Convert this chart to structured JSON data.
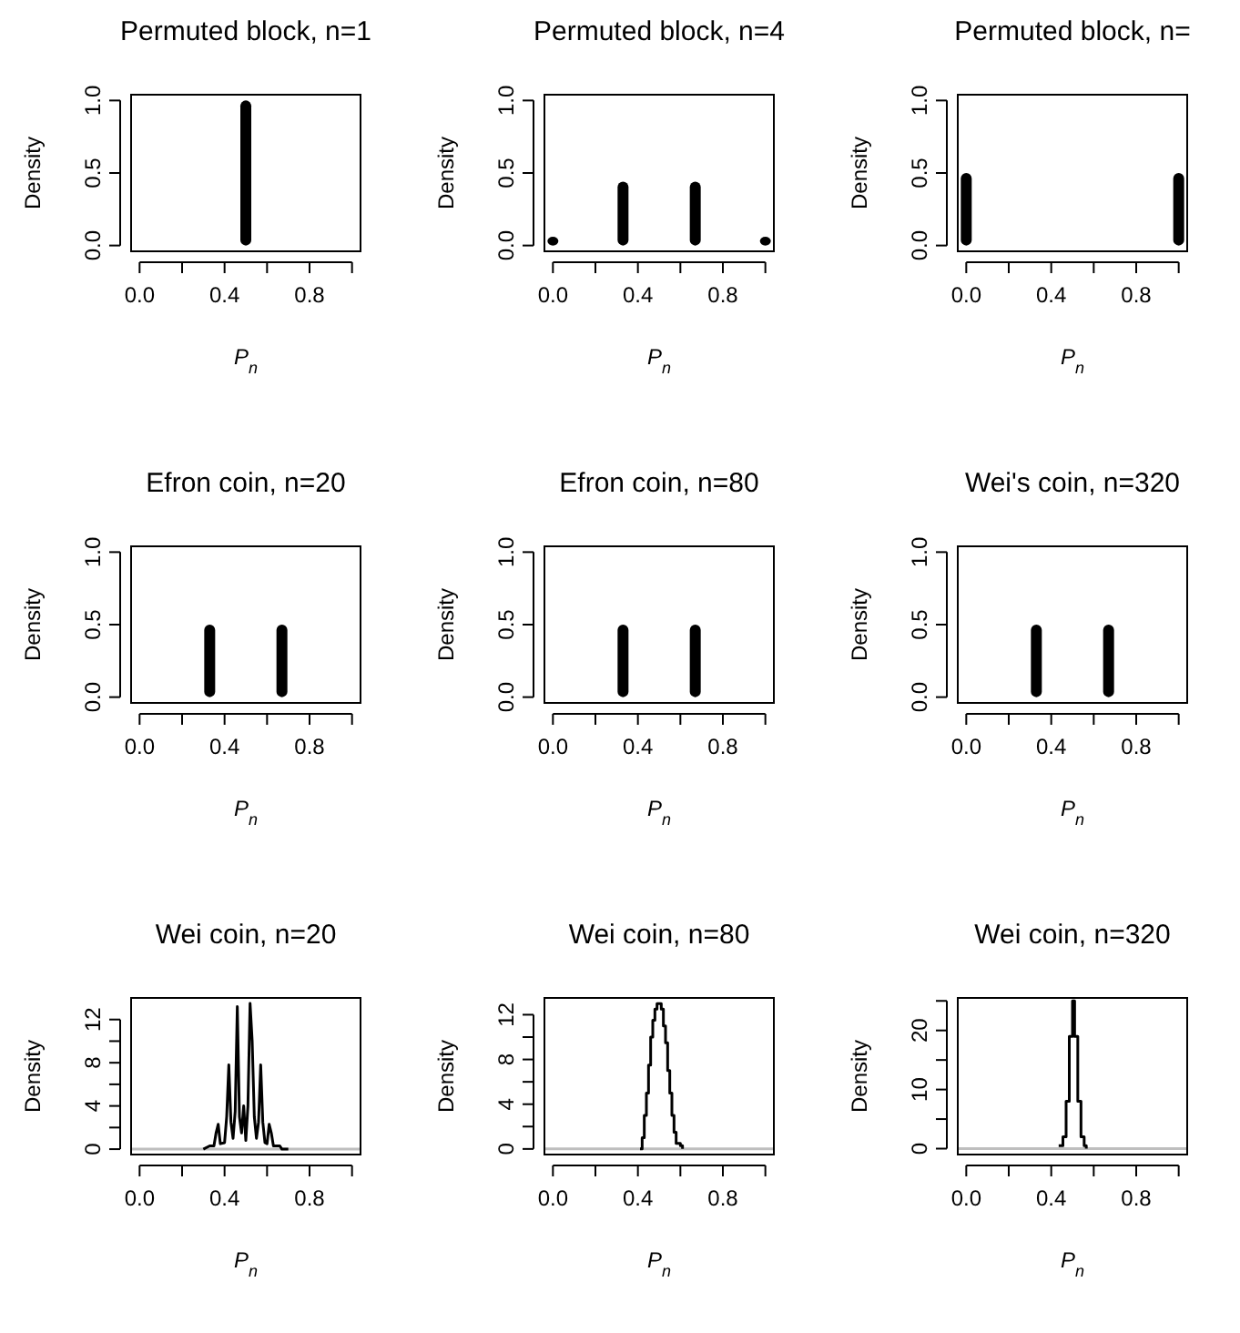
{
  "chart_data": [
    {
      "type": "bar",
      "title": "Permuted block, n=1",
      "xlabel": "P$_{n}$",
      "ylabel": "Density",
      "x": [
        0.5
      ],
      "series": [
        {
          "color": "#000000",
          "values": [
            1
          ]
        }
      ],
      "xlim": [
        -0.04,
        1.04
      ],
      "xticks": [
        {
          "value": 0,
          "label": "0.0"
        },
        {
          "value": 0.2,
          "label": null
        },
        {
          "value": 0.4,
          "label": "0.4"
        },
        {
          "value": 0.6,
          "label": null
        },
        {
          "value": 0.8,
          "label": "0.8"
        },
        {
          "value": 1,
          "label": null
        }
      ],
      "ylim": [
        -0.04,
        1.04
      ],
      "yticks": [
        {
          "value": 0,
          "label": "0.0"
        },
        {
          "value": 0.5,
          "label": "0.5"
        },
        {
          "value": 1,
          "label": "1.0"
        }
      ]
    },
    {
      "type": "bar",
      "title": "Permuted block, n=4",
      "xlabel": "P$_{n}$",
      "ylabel": "Density",
      "x": [
        0,
        0.33,
        0.67,
        1
      ],
      "series": [
        {
          "color": "#000000",
          "values": [
            0.06,
            0.44,
            0.44,
            0.06
          ]
        }
      ],
      "xlim": [
        -0.04,
        1.04
      ],
      "xticks": [
        {
          "value": 0,
          "label": "0.0"
        },
        {
          "value": 0.2,
          "label": null
        },
        {
          "value": 0.4,
          "label": "0.4"
        },
        {
          "value": 0.6,
          "label": null
        },
        {
          "value": 0.8,
          "label": "0.8"
        },
        {
          "value": 1,
          "label": null
        }
      ],
      "ylim": [
        -0.04,
        1.04
      ],
      "yticks": [
        {
          "value": 0,
          "label": "0.0"
        },
        {
          "value": 0.5,
          "label": "0.5"
        },
        {
          "value": 1,
          "label": "1.0"
        }
      ]
    },
    {
      "type": "bar",
      "title": "Permuted block, n=",
      "xlabel": "P$_{n}$",
      "ylabel": "Density",
      "x": [
        0,
        1
      ],
      "series": [
        {
          "color": "#000000",
          "values": [
            0.5,
            0.5
          ]
        }
      ],
      "xlim": [
        -0.04,
        1.04
      ],
      "xticks": [
        {
          "value": 0,
          "label": "0.0"
        },
        {
          "value": 0.2,
          "label": null
        },
        {
          "value": 0.4,
          "label": "0.4"
        },
        {
          "value": 0.6,
          "label": null
        },
        {
          "value": 0.8,
          "label": "0.8"
        },
        {
          "value": 1,
          "label": null
        }
      ],
      "ylim": [
        -0.04,
        1.04
      ],
      "yticks": [
        {
          "value": 0,
          "label": "0.0"
        },
        {
          "value": 0.5,
          "label": "0.5"
        },
        {
          "value": 1,
          "label": "1.0"
        }
      ]
    },
    {
      "type": "bar",
      "title": "Efron coin, n=20",
      "xlabel": "P$_{n}$",
      "ylabel": "Density",
      "x": [
        0.33,
        0.67
      ],
      "series": [
        {
          "color": "#000000",
          "values": [
            0.5,
            0.5
          ]
        }
      ],
      "xlim": [
        -0.04,
        1.04
      ],
      "xticks": [
        {
          "value": 0,
          "label": "0.0"
        },
        {
          "value": 0.2,
          "label": null
        },
        {
          "value": 0.4,
          "label": "0.4"
        },
        {
          "value": 0.6,
          "label": null
        },
        {
          "value": 0.8,
          "label": "0.8"
        },
        {
          "value": 1,
          "label": null
        }
      ],
      "ylim": [
        -0.04,
        1.04
      ],
      "yticks": [
        {
          "value": 0,
          "label": "0.0"
        },
        {
          "value": 0.5,
          "label": "0.5"
        },
        {
          "value": 1,
          "label": "1.0"
        }
      ]
    },
    {
      "type": "bar",
      "title": "Efron coin, n=80",
      "xlabel": "P$_{n}$",
      "ylabel": "Density",
      "x": [
        0.33,
        0.67
      ],
      "series": [
        {
          "color": "#000000",
          "values": [
            0.5,
            0.5
          ]
        }
      ],
      "xlim": [
        -0.04,
        1.04
      ],
      "xticks": [
        {
          "value": 0,
          "label": "0.0"
        },
        {
          "value": 0.2,
          "label": null
        },
        {
          "value": 0.4,
          "label": "0.4"
        },
        {
          "value": 0.6,
          "label": null
        },
        {
          "value": 0.8,
          "label": "0.8"
        },
        {
          "value": 1,
          "label": null
        }
      ],
      "ylim": [
        -0.04,
        1.04
      ],
      "yticks": [
        {
          "value": 0,
          "label": "0.0"
        },
        {
          "value": 0.5,
          "label": "0.5"
        },
        {
          "value": 1,
          "label": "1.0"
        }
      ]
    },
    {
      "type": "bar",
      "title": "Wei's coin, n=320",
      "xlabel": "P$_{n}$",
      "ylabel": "Density",
      "x": [
        0.33,
        0.67
      ],
      "series": [
        {
          "color": "#000000",
          "values": [
            0.5,
            0.5
          ]
        }
      ],
      "xlim": [
        -0.04,
        1.04
      ],
      "xticks": [
        {
          "value": 0,
          "label": "0.0"
        },
        {
          "value": 0.2,
          "label": null
        },
        {
          "value": 0.4,
          "label": "0.4"
        },
        {
          "value": 0.6,
          "label": null
        },
        {
          "value": 0.8,
          "label": "0.8"
        },
        {
          "value": 1,
          "label": null
        }
      ],
      "ylim": [
        -0.04,
        1.04
      ],
      "yticks": [
        {
          "value": 0,
          "label": "0.0"
        },
        {
          "value": 0.5,
          "label": "0.5"
        },
        {
          "value": 1,
          "label": "1.0"
        }
      ]
    },
    {
      "type": "line",
      "title": "Wei coin, n=20",
      "xlabel": "P$_{n}$",
      "ylabel": "Density",
      "x": [
        0.3,
        0.33,
        0.35,
        0.36,
        0.37,
        0.38,
        0.4,
        0.41,
        0.42,
        0.43,
        0.44,
        0.45,
        0.46,
        0.47,
        0.48,
        0.49,
        0.5,
        0.51,
        0.52,
        0.53,
        0.54,
        0.55,
        0.56,
        0.57,
        0.58,
        0.59,
        0.6,
        0.61,
        0.62,
        0.63,
        0.66,
        0.67,
        0.7
      ],
      "series": [
        {
          "color": "#000000",
          "values": [
            0,
            0.3,
            0.3,
            1.5,
            2.3,
            0.5,
            0.6,
            3,
            7.8,
            2.5,
            1,
            3.5,
            13.2,
            3,
            1.5,
            4,
            0.8,
            4,
            13.5,
            10,
            3,
            1,
            2.5,
            7.8,
            2.5,
            0.6,
            0.5,
            2.3,
            1.5,
            0.3,
            0.3,
            0,
            0
          ]
        }
      ],
      "ref_lines": [
        {
          "axis": "y",
          "value": 0,
          "color": "#bebebe"
        }
      ],
      "xlim": [
        -0.04,
        1.04
      ],
      "xticks": [
        {
          "value": 0,
          "label": "0.0"
        },
        {
          "value": 0.2,
          "label": null
        },
        {
          "value": 0.4,
          "label": "0.4"
        },
        {
          "value": 0.6,
          "label": null
        },
        {
          "value": 0.8,
          "label": "0.8"
        },
        {
          "value": 1,
          "label": null
        }
      ],
      "ylim": [
        -0.5,
        14
      ],
      "yticks": [
        0,
        {
          "value": 2,
          "label": null
        },
        4,
        {
          "value": 6,
          "label": null
        },
        8,
        {
          "value": 10,
          "label": null
        },
        12
      ]
    },
    {
      "type": "step",
      "title": "Wei coin, n=80",
      "xlabel": "P$_{n}$",
      "ylabel": "Density",
      "x": [
        0.41,
        0.42,
        0.43,
        0.44,
        0.45,
        0.46,
        0.47,
        0.48,
        0.49,
        0.5,
        0.51,
        0.52,
        0.53,
        0.54,
        0.55,
        0.56,
        0.57,
        0.58,
        0.6,
        0.61
      ],
      "series": [
        {
          "color": "#000000",
          "values": [
            0,
            1,
            3,
            5,
            7.5,
            10,
            11.5,
            12.5,
            13,
            13,
            12.5,
            11,
            9.5,
            7,
            5,
            3,
            1.5,
            0.5,
            0.3,
            0
          ]
        }
      ],
      "ref_lines": [
        {
          "axis": "y",
          "value": 0,
          "color": "#bebebe"
        }
      ],
      "xlim": [
        -0.04,
        1.04
      ],
      "xticks": [
        {
          "value": 0,
          "label": "0.0"
        },
        {
          "value": 0.2,
          "label": null
        },
        {
          "value": 0.4,
          "label": "0.4"
        },
        {
          "value": 0.6,
          "label": null
        },
        {
          "value": 0.8,
          "label": "0.8"
        },
        {
          "value": 1,
          "label": null
        }
      ],
      "ylim": [
        -0.5,
        13.5
      ],
      "yticks": [
        0,
        {
          "value": 2,
          "label": null
        },
        4,
        {
          "value": 6,
          "label": null
        },
        8,
        {
          "value": 10,
          "label": null
        },
        12
      ]
    },
    {
      "type": "step",
      "title": "Wei coin, n=320",
      "xlabel": "P$_{n}$",
      "ylabel": "Density",
      "x": [
        0.435,
        0.455,
        0.47,
        0.485,
        0.5,
        0.51,
        0.525,
        0.54,
        0.555,
        0.565
      ],
      "series": [
        {
          "color": "#000000",
          "values": [
            0.5,
            2,
            8,
            19,
            25,
            19,
            8,
            2,
            0.5,
            0
          ]
        }
      ],
      "ref_lines": [
        {
          "axis": "y",
          "value": 0,
          "color": "#bebebe"
        }
      ],
      "xlim": [
        -0.04,
        1.04
      ],
      "xticks": [
        {
          "value": 0,
          "label": "0.0"
        },
        {
          "value": 0.2,
          "label": null
        },
        {
          "value": 0.4,
          "label": "0.4"
        },
        {
          "value": 0.6,
          "label": null
        },
        {
          "value": 0.8,
          "label": "0.8"
        },
        {
          "value": 1,
          "label": null
        }
      ],
      "ylim": [
        -1,
        25.5
      ],
      "yticks": [
        0,
        {
          "value": 5,
          "label": null
        },
        10,
        {
          "value": 15,
          "label": null
        },
        20,
        {
          "value": 25,
          "label": null
        }
      ]
    }
  ]
}
